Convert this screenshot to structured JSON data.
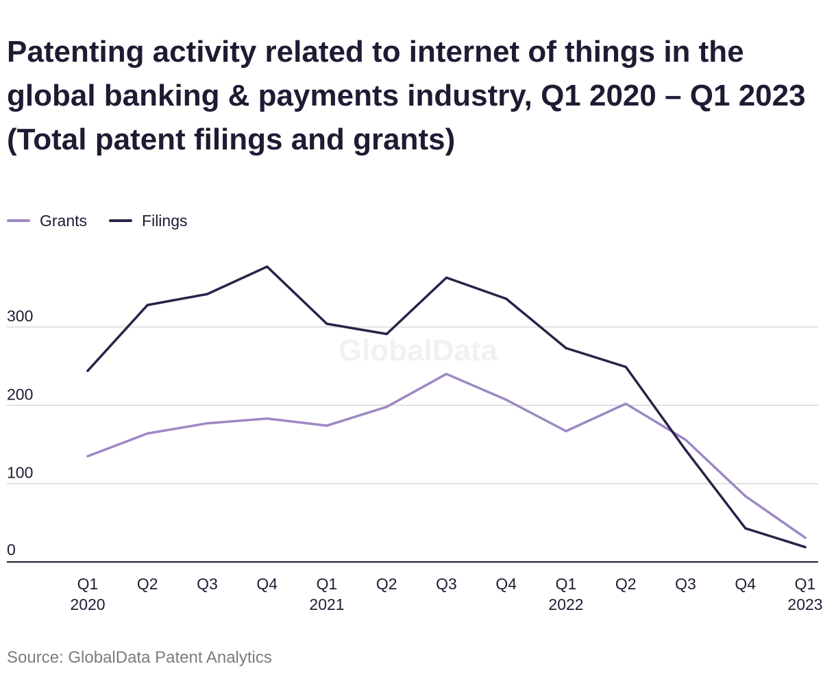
{
  "title": "Patenting activity related to internet of things in the global banking & payments industry, Q1 2020 – Q1 2023 (Total patent filings and grants)",
  "source": "Source: GlobalData Patent Analytics",
  "watermark": "GlobalData",
  "chart_data": {
    "type": "line",
    "title": "Patenting activity related to internet of things in the global banking & payments industry, Q1 2020 – Q1 2023 (Total patent filings and grants)",
    "categories": [
      "Q1 2020",
      "Q2 2020",
      "Q3 2020",
      "Q4 2020",
      "Q1 2021",
      "Q2 2021",
      "Q3 2021",
      "Q4 2021",
      "Q1 2022",
      "Q2 2022",
      "Q3 2022",
      "Q4 2022",
      "Q1 2023"
    ],
    "tick_labels": [
      [
        "Q1",
        "2020"
      ],
      [
        "Q2",
        ""
      ],
      [
        "Q3",
        ""
      ],
      [
        "Q4",
        ""
      ],
      [
        "Q1",
        "2021"
      ],
      [
        "Q2",
        ""
      ],
      [
        "Q3",
        ""
      ],
      [
        "Q4",
        ""
      ],
      [
        "Q1",
        "2022"
      ],
      [
        "Q2",
        ""
      ],
      [
        "Q3",
        ""
      ],
      [
        "Q4",
        ""
      ],
      [
        "Q1",
        "2023"
      ]
    ],
    "series": [
      {
        "name": "Grants",
        "color": "#9d87c4",
        "values": [
          135,
          164,
          177,
          183,
          174,
          198,
          240,
          207,
          167,
          202,
          156,
          84,
          31
        ]
      },
      {
        "name": "Filings",
        "color": "#2b2147",
        "values": [
          244,
          328,
          342,
          377,
          304,
          291,
          363,
          336,
          273,
          249,
          143,
          43,
          19
        ]
      }
    ],
    "yticks": [
      0,
      100,
      200,
      300
    ],
    "ylim": [
      0,
      400
    ],
    "grid": true,
    "legend": "top-left",
    "xlabel": "",
    "ylabel": ""
  }
}
